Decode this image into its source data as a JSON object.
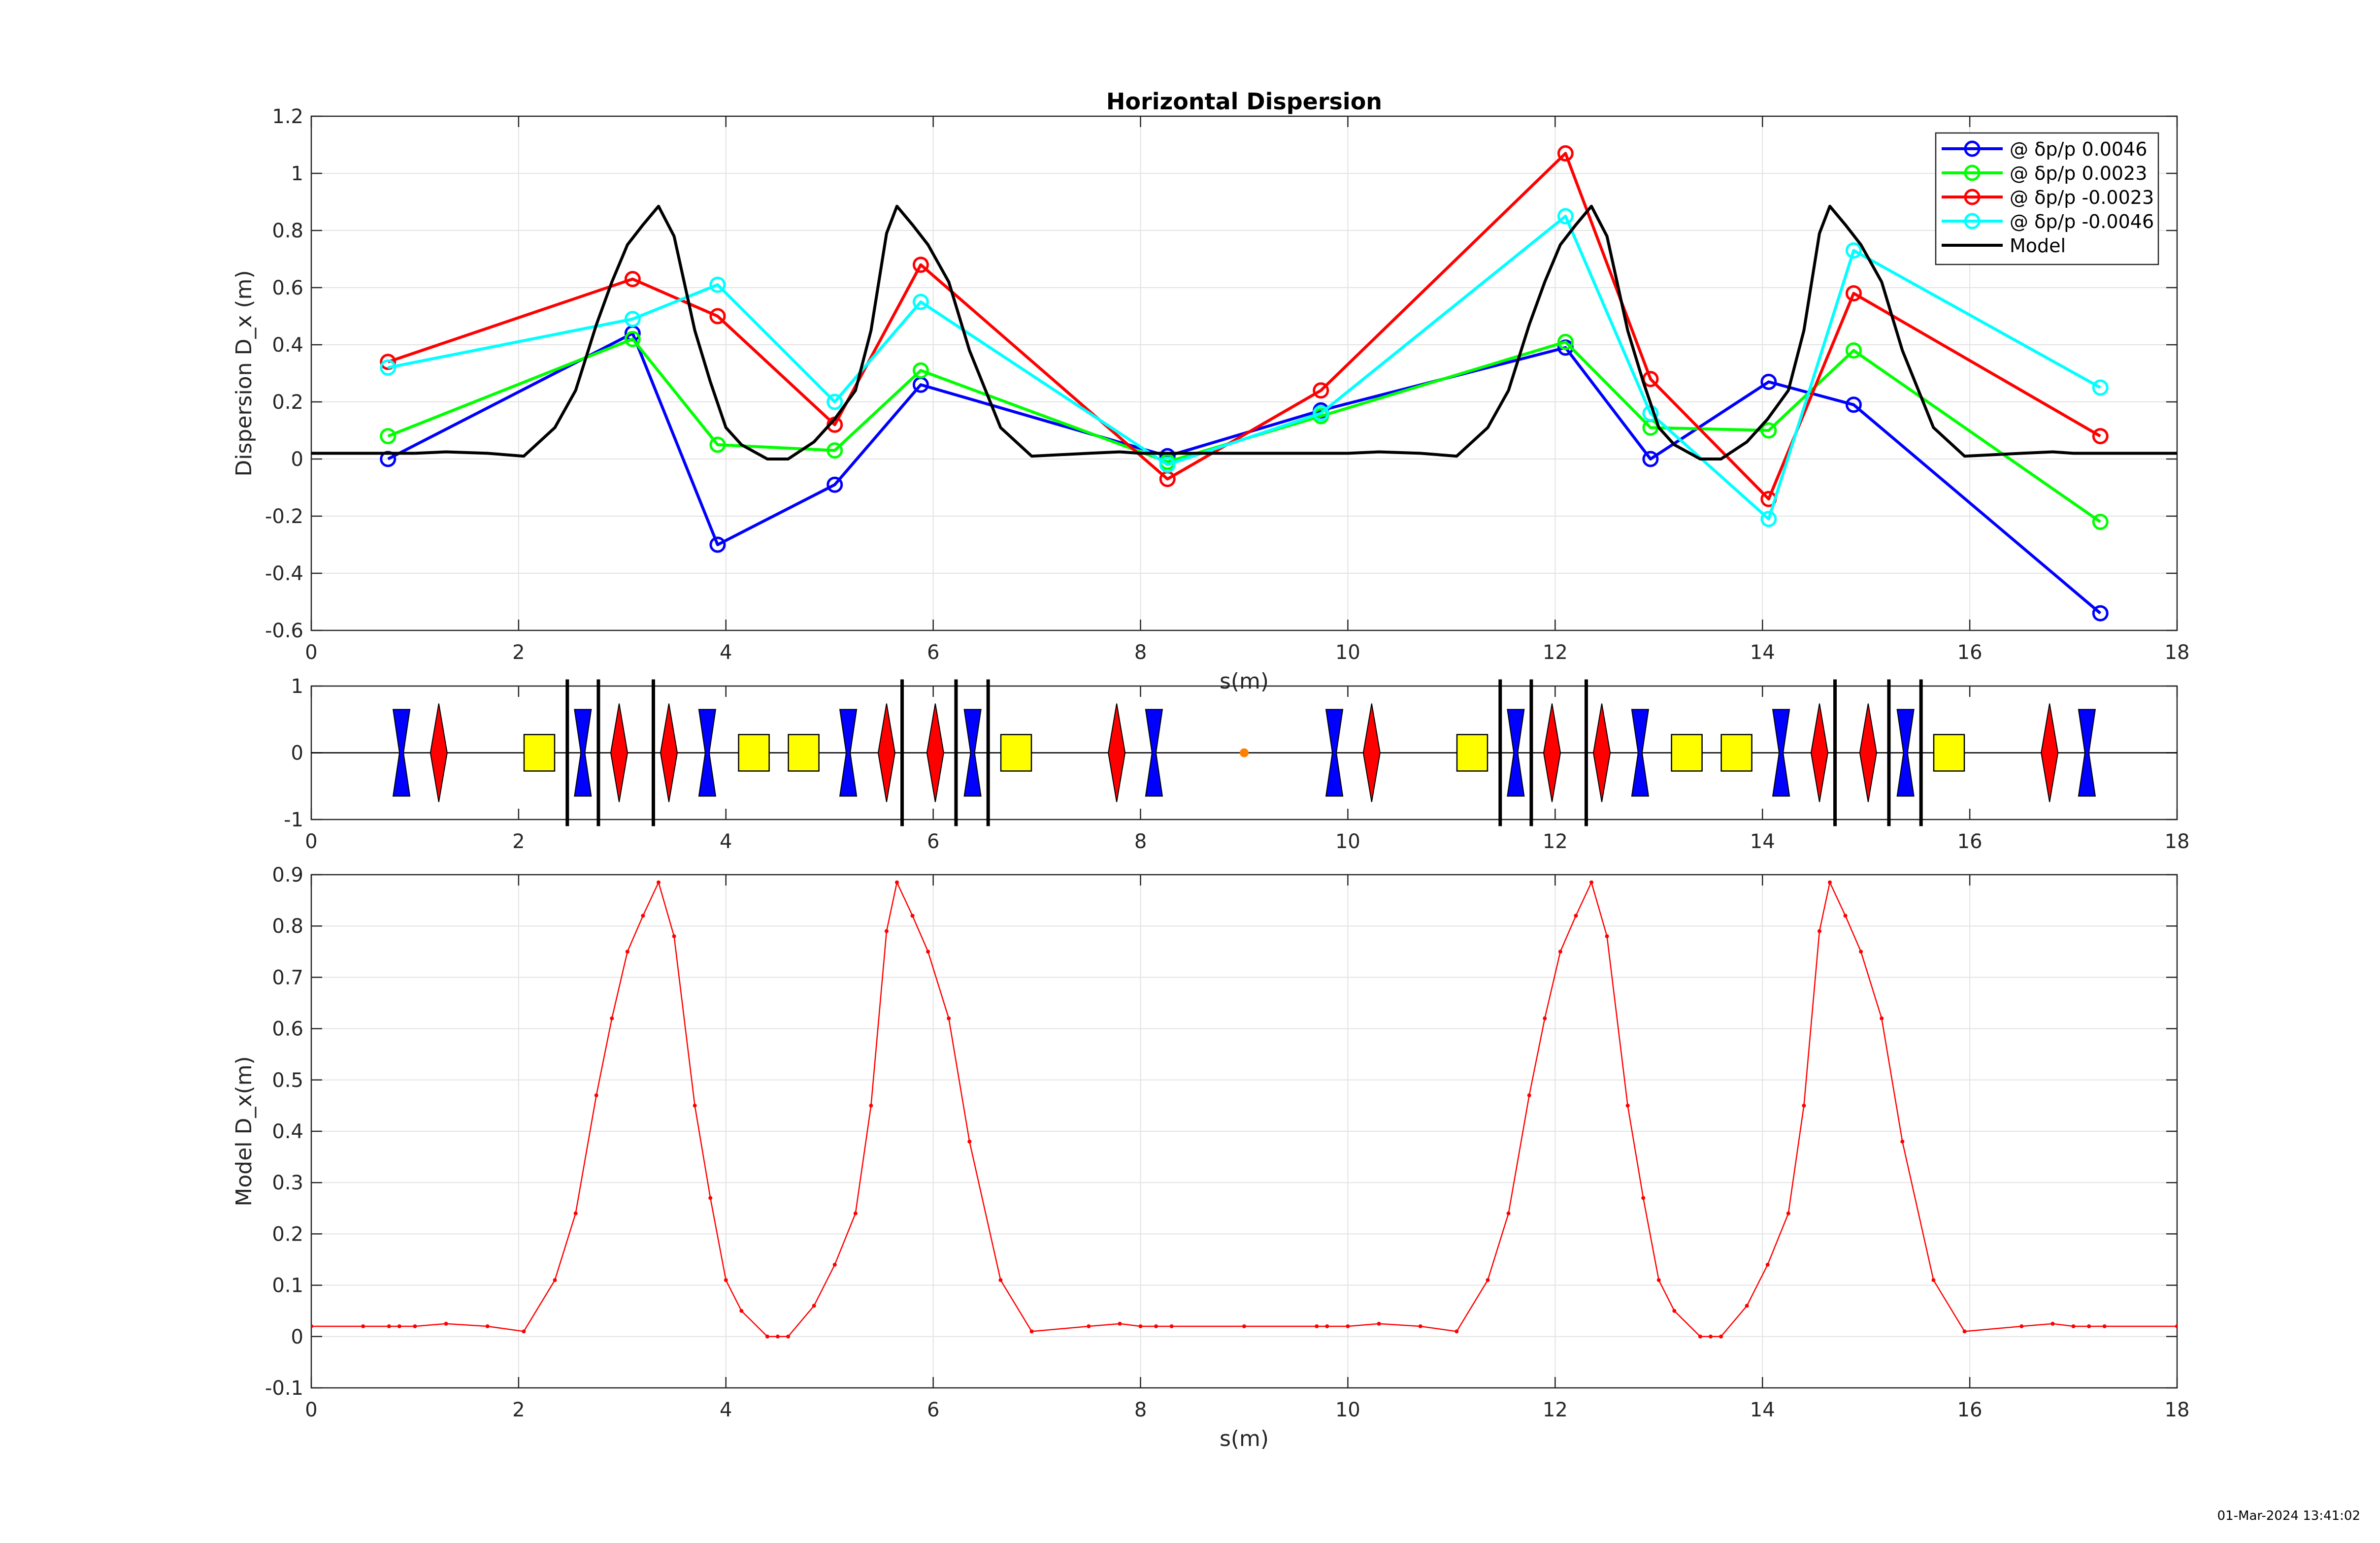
{
  "timestamp": "01-Mar-2024 13:41:02",
  "chart_data": [
    {
      "type": "line",
      "title": "Horizontal Dispersion",
      "xlabel": "s(m)",
      "ylabel": "Dispersion D_x (m)",
      "xlim": [
        0,
        18
      ],
      "ylim": [
        -0.6,
        1.2
      ],
      "xticks": [
        0,
        2,
        4,
        6,
        8,
        10,
        12,
        14,
        16,
        18
      ],
      "yticks": [
        -0.6,
        -0.4,
        -0.2,
        0,
        0.2,
        0.4,
        0.6,
        0.8,
        1,
        1.2
      ],
      "grid": true,
      "legend": "top-right",
      "series": [
        {
          "name": "@ δp/p 0.0046",
          "color": "#0000ff",
          "marker": "circle",
          "x": [
            0.74,
            3.1,
            3.92,
            5.05,
            5.88,
            8.26,
            9.74,
            12.1,
            12.92,
            14.06,
            14.88,
            17.26
          ],
          "y": [
            0.0,
            0.44,
            -0.3,
            -0.09,
            0.26,
            0.01,
            0.17,
            0.39,
            0.0,
            0.27,
            0.19,
            -0.54
          ]
        },
        {
          "name": "@ δp/p 0.0023",
          "color": "#00ff00",
          "marker": "circle",
          "x": [
            0.74,
            3.1,
            3.92,
            5.05,
            5.88,
            8.26,
            9.74,
            12.1,
            12.92,
            14.06,
            14.88,
            17.26
          ],
          "y": [
            0.08,
            0.42,
            0.05,
            0.03,
            0.31,
            -0.01,
            0.15,
            0.41,
            0.11,
            0.1,
            0.38,
            -0.22
          ]
        },
        {
          "name": "@ δp/p -0.0023",
          "color": "#ff0000",
          "marker": "circle",
          "x": [
            0.74,
            3.1,
            3.92,
            5.05,
            5.88,
            8.26,
            9.74,
            12.1,
            12.92,
            14.06,
            14.88,
            17.26
          ],
          "y": [
            0.34,
            0.63,
            0.5,
            0.12,
            0.68,
            -0.07,
            0.24,
            1.07,
            0.28,
            -0.14,
            0.58,
            0.08
          ]
        },
        {
          "name": "@ δp/p -0.0046",
          "color": "#00ffff",
          "marker": "circle",
          "x": [
            0.74,
            3.1,
            3.92,
            5.05,
            5.88,
            8.26,
            9.74,
            12.1,
            12.92,
            14.06,
            14.88,
            17.26
          ],
          "y": [
            0.32,
            0.49,
            0.61,
            0.2,
            0.55,
            -0.02,
            0.16,
            0.85,
            0.16,
            -0.21,
            0.73,
            0.25
          ]
        },
        {
          "name": "Model",
          "color": "#000000",
          "marker": "none",
          "x": [
            0,
            0.5,
            1.0,
            1.3,
            1.7,
            2.05,
            2.35,
            2.55,
            2.75,
            2.9,
            3.05,
            3.2,
            3.35,
            3.5,
            3.7,
            3.85,
            4.0,
            4.15,
            4.4,
            4.5,
            4.6,
            4.85,
            5.05,
            5.25,
            5.4,
            5.55,
            5.65,
            5.8,
            5.95,
            6.15,
            6.35,
            6.65,
            6.95,
            7.5,
            7.8,
            8.0,
            8.3,
            9.0,
            9.7,
            10.0,
            10.3,
            10.7,
            11.05,
            11.35,
            11.55,
            11.75,
            11.9,
            12.05,
            12.2,
            12.35,
            12.5,
            12.7,
            12.85,
            13.0,
            13.15,
            13.4,
            13.5,
            13.6,
            13.85,
            14.05,
            14.25,
            14.4,
            14.55,
            14.65,
            14.8,
            14.95,
            15.15,
            15.35,
            15.65,
            15.95,
            16.5,
            16.8,
            17.0,
            17.3,
            18.0
          ],
          "y": [
            0.02,
            0.02,
            0.02,
            0.025,
            0.02,
            0.01,
            0.11,
            0.24,
            0.47,
            0.62,
            0.75,
            0.82,
            0.885,
            0.78,
            0.45,
            0.27,
            0.11,
            0.05,
            0.0,
            0.0,
            0.0,
            0.06,
            0.14,
            0.24,
            0.45,
            0.79,
            0.885,
            0.82,
            0.75,
            0.62,
            0.38,
            0.11,
            0.01,
            0.02,
            0.025,
            0.02,
            0.02,
            0.02,
            0.02,
            0.02,
            0.025,
            0.02,
            0.01,
            0.11,
            0.24,
            0.47,
            0.62,
            0.75,
            0.82,
            0.885,
            0.78,
            0.45,
            0.27,
            0.11,
            0.05,
            0.0,
            0.0,
            0.0,
            0.06,
            0.14,
            0.24,
            0.45,
            0.79,
            0.885,
            0.82,
            0.75,
            0.62,
            0.38,
            0.11,
            0.01,
            0.02,
            0.025,
            0.02,
            0.02,
            0.02
          ]
        }
      ]
    },
    {
      "type": "lattice",
      "xlim": [
        0,
        18
      ],
      "ylim": [
        -1,
        1
      ],
      "xticks": [
        0,
        2,
        4,
        6,
        8,
        10,
        12,
        14,
        16,
        18
      ],
      "yticks": [
        -1,
        0,
        1
      ],
      "colors": {
        "focusing": "#ff0000",
        "defocusing": "#0000ff",
        "dipole": "#ffff00",
        "marker": "#000000",
        "monitor": "#ff8000"
      },
      "elements": [
        {
          "kind": "defocusing",
          "s": 0.87
        },
        {
          "kind": "focusing",
          "s": 1.23
        },
        {
          "kind": "dipole",
          "s": 2.2
        },
        {
          "kind": "marker",
          "s": 2.47
        },
        {
          "kind": "defocusing",
          "s": 2.62
        },
        {
          "kind": "marker",
          "s": 2.77
        },
        {
          "kind": "focusing",
          "s": 2.97
        },
        {
          "kind": "marker",
          "s": 3.3
        },
        {
          "kind": "focusing",
          "s": 3.45
        },
        {
          "kind": "defocusing",
          "s": 3.82
        },
        {
          "kind": "dipole",
          "s": 4.27
        },
        {
          "kind": "dipole",
          "s": 4.75
        },
        {
          "kind": "defocusing",
          "s": 5.18
        },
        {
          "kind": "focusing",
          "s": 5.55
        },
        {
          "kind": "marker",
          "s": 5.7
        },
        {
          "kind": "focusing",
          "s": 6.02
        },
        {
          "kind": "marker",
          "s": 6.22
        },
        {
          "kind": "defocusing",
          "s": 6.38
        },
        {
          "kind": "marker",
          "s": 6.53
        },
        {
          "kind": "dipole",
          "s": 6.8
        },
        {
          "kind": "focusing",
          "s": 7.77
        },
        {
          "kind": "defocusing",
          "s": 8.13
        },
        {
          "kind": "monitor",
          "s": 9.0
        },
        {
          "kind": "defocusing",
          "s": 9.87
        },
        {
          "kind": "focusing",
          "s": 10.23
        },
        {
          "kind": "dipole",
          "s": 11.2
        },
        {
          "kind": "marker",
          "s": 11.47
        },
        {
          "kind": "defocusing",
          "s": 11.62
        },
        {
          "kind": "marker",
          "s": 11.77
        },
        {
          "kind": "focusing",
          "s": 11.97
        },
        {
          "kind": "marker",
          "s": 12.3
        },
        {
          "kind": "focusing",
          "s": 12.45
        },
        {
          "kind": "defocusing",
          "s": 12.82
        },
        {
          "kind": "dipole",
          "s": 13.27
        },
        {
          "kind": "dipole",
          "s": 13.75
        },
        {
          "kind": "defocusing",
          "s": 14.18
        },
        {
          "kind": "focusing",
          "s": 14.55
        },
        {
          "kind": "marker",
          "s": 14.7
        },
        {
          "kind": "focusing",
          "s": 15.02
        },
        {
          "kind": "marker",
          "s": 15.22
        },
        {
          "kind": "defocusing",
          "s": 15.38
        },
        {
          "kind": "marker",
          "s": 15.53
        },
        {
          "kind": "dipole",
          "s": 15.8
        },
        {
          "kind": "focusing",
          "s": 16.77
        },
        {
          "kind": "defocusing",
          "s": 17.13
        }
      ]
    },
    {
      "type": "line",
      "xlabel": "s(m)",
      "ylabel": "Model D_x(m)",
      "xlim": [
        0,
        18
      ],
      "ylim": [
        -0.1,
        0.9
      ],
      "xticks": [
        0,
        2,
        4,
        6,
        8,
        10,
        12,
        14,
        16,
        18
      ],
      "yticks": [
        -0.1,
        0,
        0.1,
        0.2,
        0.3,
        0.4,
        0.5,
        0.6,
        0.7,
        0.8,
        0.9
      ],
      "grid": true,
      "series": [
        {
          "color": "#ff0000",
          "marker": "dot",
          "x": [
            0,
            0.5,
            0.75,
            0.85,
            1.0,
            1.3,
            1.7,
            2.05,
            2.35,
            2.55,
            2.75,
            2.9,
            3.05,
            3.2,
            3.35,
            3.5,
            3.7,
            3.85,
            4.0,
            4.15,
            4.4,
            4.5,
            4.6,
            4.85,
            5.05,
            5.25,
            5.4,
            5.55,
            5.65,
            5.8,
            5.95,
            6.15,
            6.35,
            6.65,
            6.95,
            7.5,
            7.8,
            8.0,
            8.15,
            8.3,
            9.0,
            9.7,
            9.8,
            10.0,
            10.3,
            10.7,
            11.05,
            11.35,
            11.55,
            11.75,
            11.9,
            12.05,
            12.2,
            12.35,
            12.5,
            12.7,
            12.85,
            13.0,
            13.15,
            13.4,
            13.5,
            13.6,
            13.85,
            14.05,
            14.25,
            14.4,
            14.55,
            14.65,
            14.8,
            14.95,
            15.15,
            15.35,
            15.65,
            15.95,
            16.5,
            16.8,
            17.0,
            17.15,
            17.3,
            18.0
          ],
          "y": [
            0.02,
            0.02,
            0.02,
            0.02,
            0.02,
            0.025,
            0.02,
            0.01,
            0.11,
            0.24,
            0.47,
            0.62,
            0.75,
            0.82,
            0.885,
            0.78,
            0.45,
            0.27,
            0.11,
            0.05,
            0.0,
            0.0,
            0.0,
            0.06,
            0.14,
            0.24,
            0.45,
            0.79,
            0.885,
            0.82,
            0.75,
            0.62,
            0.38,
            0.11,
            0.01,
            0.02,
            0.025,
            0.02,
            0.02,
            0.02,
            0.02,
            0.02,
            0.02,
            0.02,
            0.025,
            0.02,
            0.01,
            0.11,
            0.24,
            0.47,
            0.62,
            0.75,
            0.82,
            0.885,
            0.78,
            0.45,
            0.27,
            0.11,
            0.05,
            0.0,
            0.0,
            0.0,
            0.06,
            0.14,
            0.24,
            0.45,
            0.79,
            0.885,
            0.82,
            0.75,
            0.62,
            0.38,
            0.11,
            0.01,
            0.02,
            0.025,
            0.02,
            0.02,
            0.02,
            0.02
          ]
        }
      ]
    }
  ]
}
